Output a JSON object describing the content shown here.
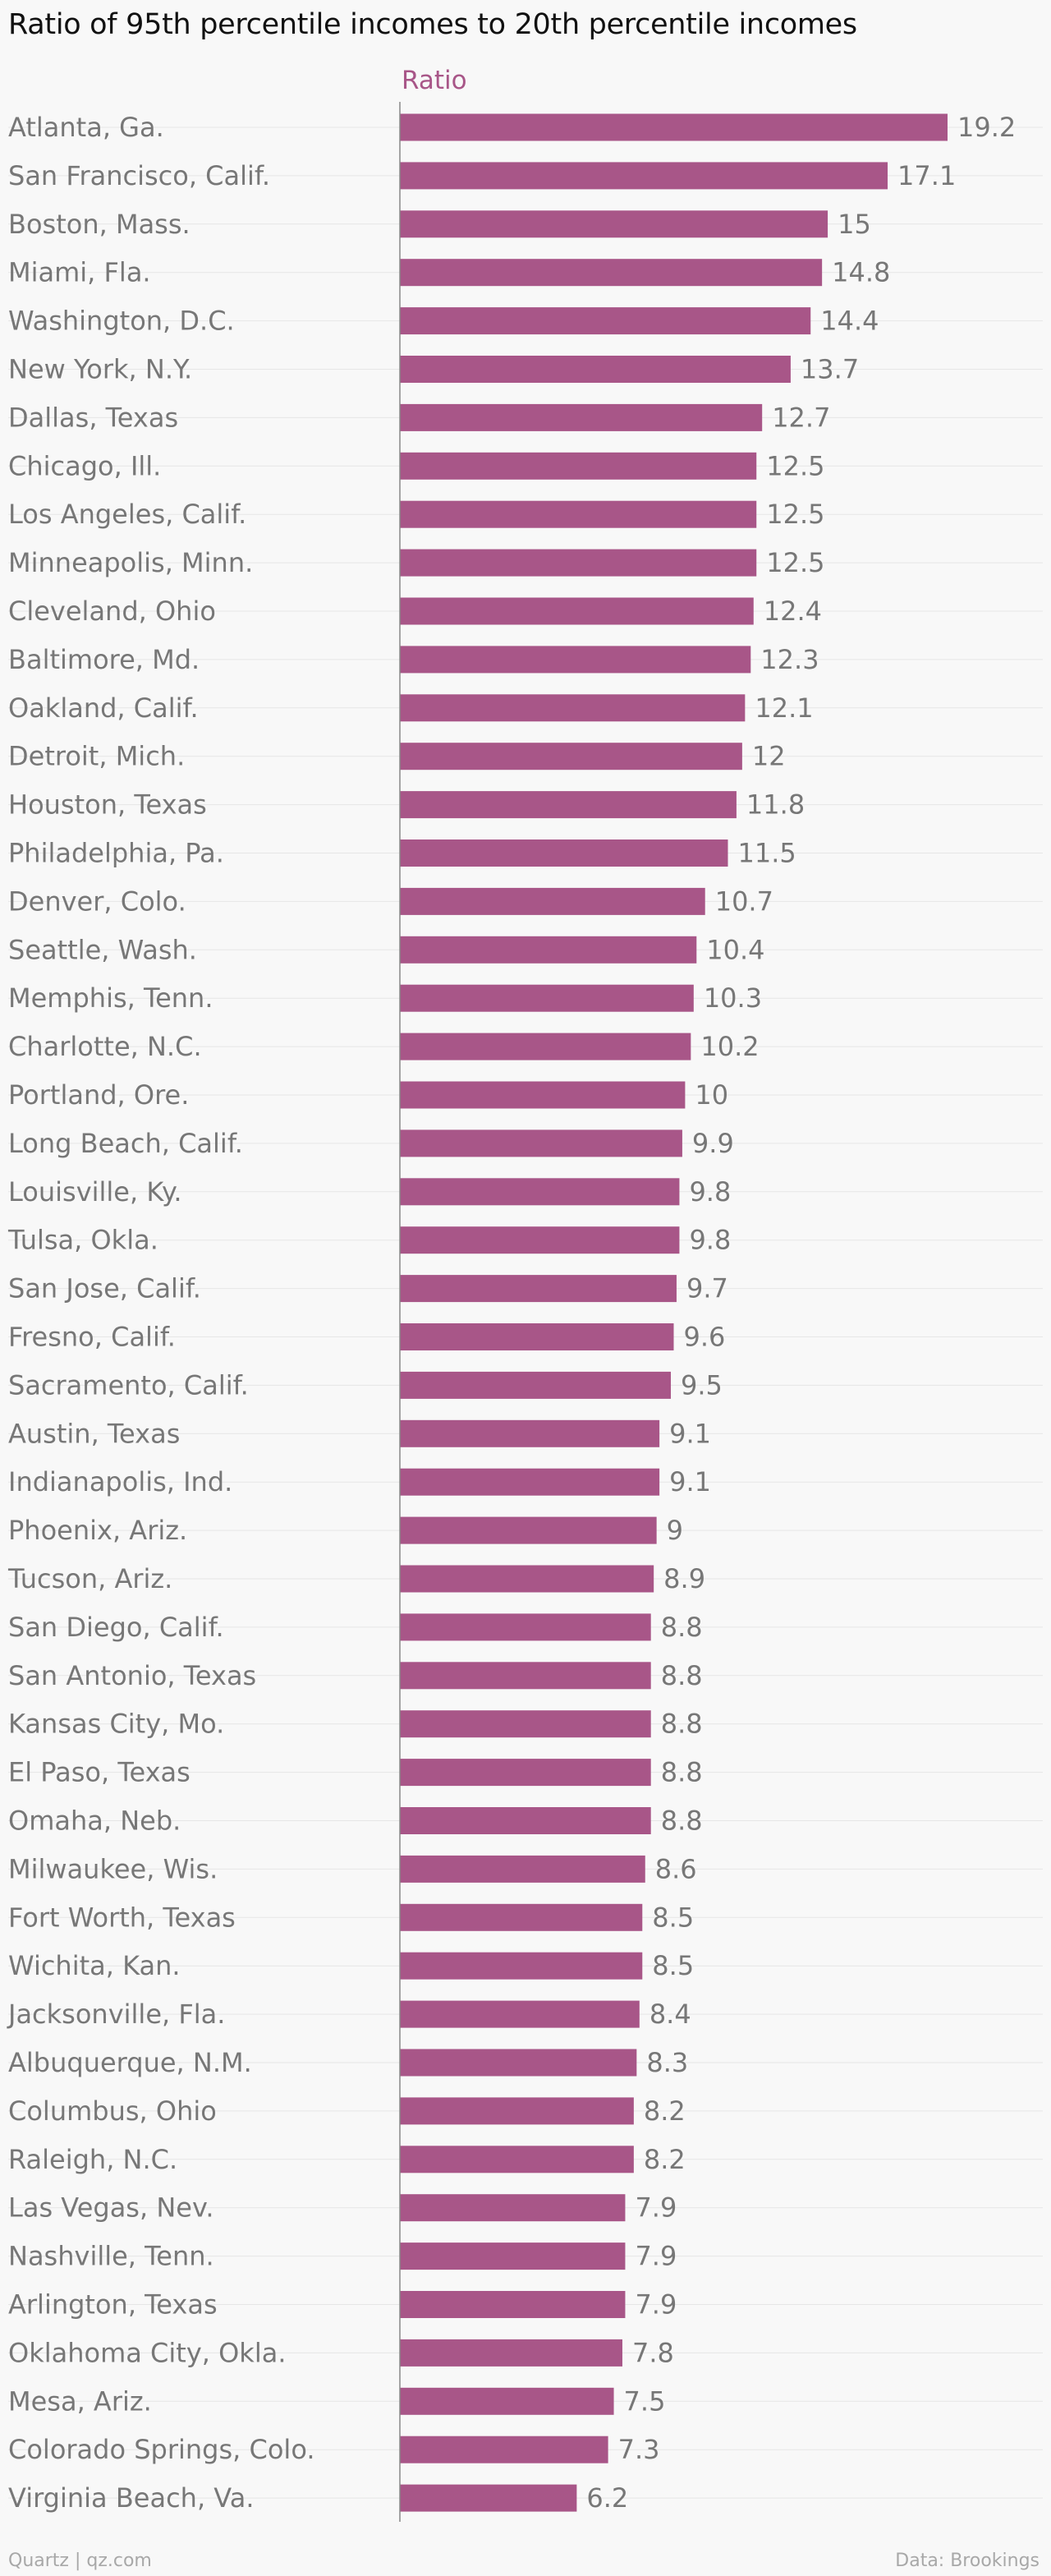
{
  "chart_data": {
    "type": "bar",
    "orientation": "horizontal",
    "title": "Ratio of 95th percentile incomes to 20th percentile incomes",
    "legend": "Ratio",
    "bar_color": "#a85688",
    "categories": [
      "Atlanta, Ga.",
      "San Francisco, Calif.",
      "Boston, Mass.",
      "Miami, Fla.",
      "Washington, D.C.",
      "New York, N.Y.",
      "Dallas, Texas",
      "Chicago, Ill.",
      "Los Angeles, Calif.",
      "Minneapolis, Minn.",
      "Cleveland, Ohio",
      "Baltimore, Md.",
      "Oakland, Calif.",
      "Detroit, Mich.",
      "Houston, Texas",
      "Philadelphia, Pa.",
      "Denver, Colo.",
      "Seattle, Wash.",
      "Memphis, Tenn.",
      "Charlotte, N.C.",
      "Portland, Ore.",
      "Long Beach, Calif.",
      "Louisville, Ky.",
      "Tulsa, Okla.",
      "San Jose, Calif.",
      "Fresno, Calif.",
      "Sacramento, Calif.",
      "Austin, Texas",
      "Indianapolis, Ind.",
      "Phoenix, Ariz.",
      "Tucson, Ariz.",
      "San Diego, Calif.",
      "San Antonio, Texas",
      "Kansas City, Mo.",
      "El Paso, Texas",
      "Omaha, Neb.",
      "Milwaukee, Wis.",
      "Fort Worth, Texas",
      "Wichita, Kan.",
      "Jacksonville, Fla.",
      "Albuquerque, N.M.",
      "Columbus, Ohio",
      "Raleigh, N.C.",
      "Las Vegas, Nev.",
      "Nashville, Tenn.",
      "Arlington, Texas",
      "Oklahoma City, Okla.",
      "Mesa, Ariz.",
      "Colorado Springs, Colo.",
      "Virginia Beach, Va."
    ],
    "values": [
      19.2,
      17.1,
      15,
      14.8,
      14.4,
      13.7,
      12.7,
      12.5,
      12.5,
      12.5,
      12.4,
      12.3,
      12.1,
      12,
      11.8,
      11.5,
      10.7,
      10.4,
      10.3,
      10.2,
      10,
      9.9,
      9.8,
      9.8,
      9.7,
      9.6,
      9.5,
      9.1,
      9.1,
      9,
      8.9,
      8.8,
      8.8,
      8.8,
      8.8,
      8.8,
      8.6,
      8.5,
      8.5,
      8.4,
      8.3,
      8.2,
      8.2,
      7.9,
      7.9,
      7.9,
      7.8,
      7.5,
      7.3,
      6.2
    ],
    "xlim": [
      0,
      19.2
    ]
  },
  "footer": {
    "source_left": "Quartz | qz.com",
    "source_right": "Data: Brookings"
  }
}
